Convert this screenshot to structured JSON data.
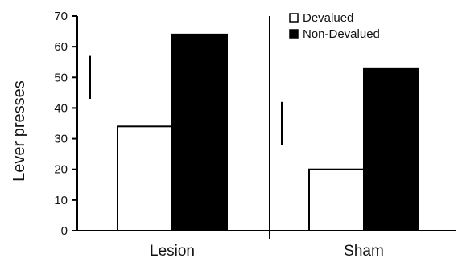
{
  "chart_data": {
    "type": "bar",
    "title": "",
    "xlabel": "",
    "ylabel": "Lever presses",
    "ylim": [
      0,
      70
    ],
    "yticks": [
      0,
      10,
      20,
      30,
      40,
      50,
      60,
      70
    ],
    "categories": [
      "Lesion",
      "Sham"
    ],
    "series": [
      {
        "name": "Devalued",
        "values": [
          34,
          20
        ],
        "color": "#ffffff",
        "error_top": [
          57,
          42
        ]
      },
      {
        "name": "Non-Devalued",
        "values": [
          64,
          53
        ],
        "color": "#000000"
      }
    ],
    "legend_position": "top-right",
    "grid": false
  }
}
